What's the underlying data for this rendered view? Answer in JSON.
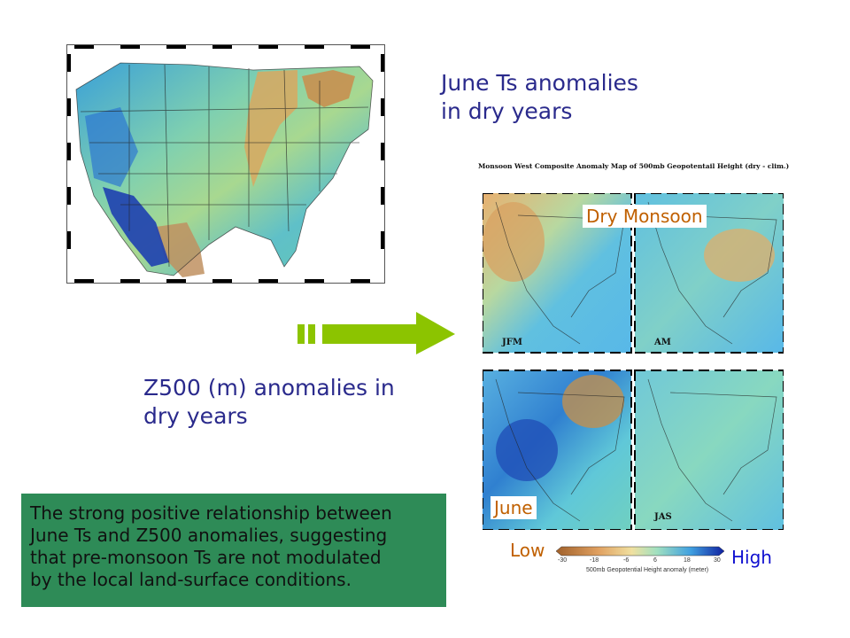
{
  "titles": {
    "june_ts": [
      "June Ts anomalies",
      "in dry years"
    ],
    "z500": [
      "Z500 (m) anomalies in",
      "dry years"
    ]
  },
  "composite": {
    "title": "Monsoon West Composite Anomaly Map of 500mb Geopotentail Height (dry - clim.)",
    "panels": [
      "JFM",
      "AM",
      "",
      "JAS"
    ],
    "callout_dry": "Dry Monsoon",
    "callout_june": "June"
  },
  "colorbar": {
    "low_label": "Low",
    "high_label": "High",
    "ticks": [
      "-30",
      "-18",
      "-6",
      "6",
      "18",
      "30"
    ],
    "caption": "500mb Geopotential Height anomaly (meter)",
    "colors": [
      "#a0602a",
      "#e0a060",
      "#f0e0a0",
      "#a0e0c0",
      "#40a0e0",
      "#1020a0"
    ]
  },
  "info_box": {
    "lines": [
      "The strong positive relationship between",
      "June Ts and Z500 anomalies, suggesting",
      "that pre-monsoon Ts are not modulated",
      "by the local land-surface conditions."
    ],
    "color": "#2e8b57"
  },
  "arrow_color": "#8cc400"
}
